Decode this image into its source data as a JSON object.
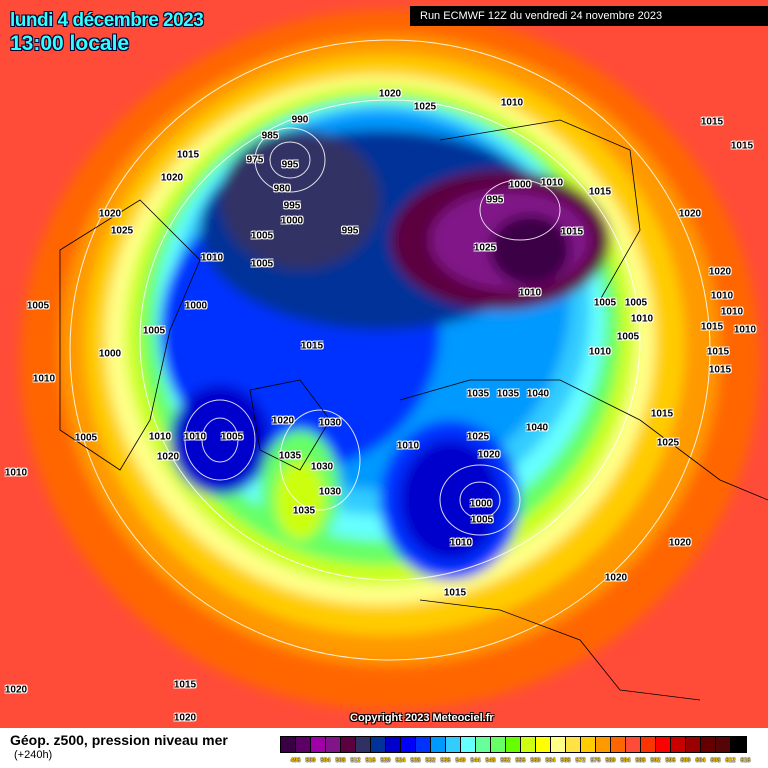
{
  "header": {
    "date": "lundi 4 décembre 2023",
    "time": "13:00 locale",
    "run": "Run ECMWF 12Z du vendredi 24 novembre 2023"
  },
  "map": {
    "copyright": "Copyright 2023 Meteociel.fr",
    "pressure_labels": [
      "990",
      "985",
      "975",
      "995",
      "980",
      "995",
      "1000",
      "1005",
      "995",
      "1020",
      "1025",
      "1010",
      "1015",
      "1020",
      "1020",
      "1025",
      "1010",
      "1005",
      "1005",
      "1000",
      "1000",
      "1005",
      "1010",
      "1015",
      "1020",
      "1010",
      "1005",
      "1010",
      "1005",
      "1020",
      "1010",
      "1015",
      "1020",
      "1020",
      "1015",
      "1020",
      "1020",
      "995",
      "1000",
      "1010",
      "1015",
      "1025",
      "1015",
      "1010",
      "1005",
      "1005",
      "1010",
      "1035",
      "1035",
      "1040",
      "1010",
      "1035",
      "1030",
      "1030",
      "1035",
      "1040",
      "1030",
      "1025",
      "1020",
      "1000",
      "1005",
      "1010",
      "1015",
      "1020",
      "1020",
      "1010",
      "1005",
      "1015",
      "1015",
      "1015",
      "1010",
      "1010",
      "1010",
      "1015",
      "1025",
      "1015"
    ],
    "isobar_color": "#ffffff"
  },
  "footer": {
    "title": "Géop. z500, pression niveau mer",
    "subtitle": "(+240h)",
    "legend": [
      {
        "label": "496",
        "color": "#3a0045"
      },
      {
        "label": "500",
        "color": "#5c0066"
      },
      {
        "label": "504",
        "color": "#a000a8"
      },
      {
        "label": "508",
        "color": "#801488"
      },
      {
        "label": "512",
        "color": "#5c0040"
      },
      {
        "label": "516",
        "color": "#303065"
      },
      {
        "label": "520",
        "color": "#003399"
      },
      {
        "label": "524",
        "color": "#0000cc"
      },
      {
        "label": "528",
        "color": "#0000ff"
      },
      {
        "label": "532",
        "color": "#0033ff"
      },
      {
        "label": "536",
        "color": "#0099ff"
      },
      {
        "label": "540",
        "color": "#33ccff"
      },
      {
        "label": "544",
        "color": "#66ffff"
      },
      {
        "label": "548",
        "color": "#66ff99"
      },
      {
        "label": "552",
        "color": "#66ff66"
      },
      {
        "label": "556",
        "color": "#66ff00"
      },
      {
        "label": "560",
        "color": "#ccff11"
      },
      {
        "label": "564",
        "color": "#ffff00"
      },
      {
        "label": "568",
        "color": "#ffff88"
      },
      {
        "label": "572",
        "color": "#ffe244"
      },
      {
        "label": "576",
        "color": "#ffcc00"
      },
      {
        "label": "580",
        "color": "#ff9900"
      },
      {
        "label": "584",
        "color": "#ff6600"
      },
      {
        "label": "588",
        "color": "#ff4c38"
      },
      {
        "label": "592",
        "color": "#ff3300"
      },
      {
        "label": "596",
        "color": "#ff0000"
      },
      {
        "label": "600",
        "color": "#c80000"
      },
      {
        "label": "604",
        "color": "#990000"
      },
      {
        "label": "608",
        "color": "#660000"
      },
      {
        "label": "612",
        "color": "#550505"
      },
      {
        "label": "616",
        "color": "#000000"
      }
    ]
  }
}
